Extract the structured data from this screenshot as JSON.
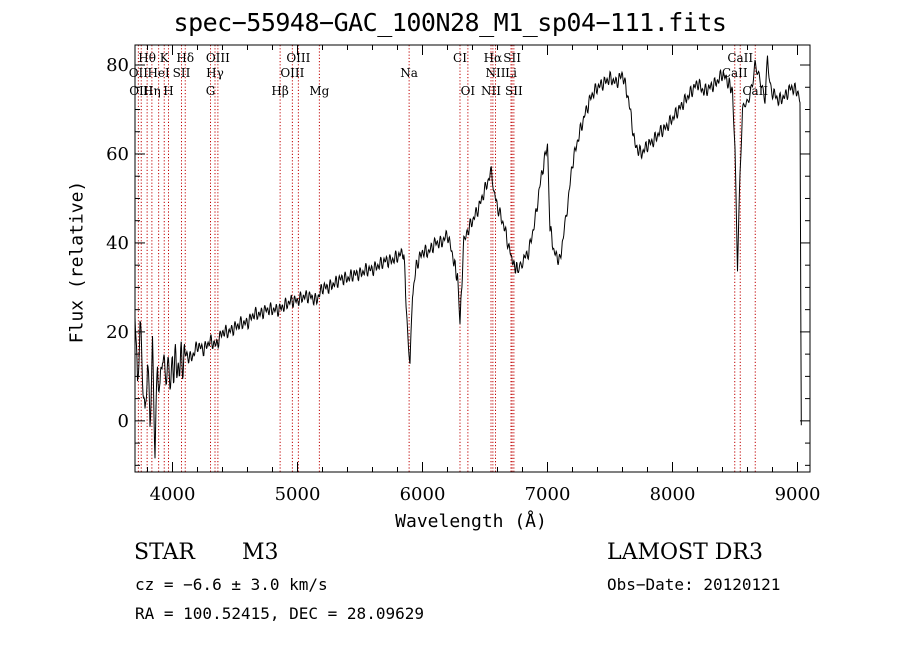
{
  "chart_data": {
    "type": "line",
    "title": "spec−55948−GAC_100N28_M1_sp04−111.fits",
    "xlabel": "Wavelength (Å)",
    "ylabel": "Flux (relative)",
    "xlim": [
      3700,
      9100
    ],
    "ylim": [
      -11.5,
      84.5
    ],
    "xticks": [
      4000,
      5000,
      6000,
      7000,
      8000,
      9000
    ],
    "yticks": [
      0,
      20,
      40,
      60,
      80
    ],
    "series": [
      {
        "name": "flux",
        "x": [
          3700,
          3720,
          3740,
          3760,
          3780,
          3800,
          3820,
          3840,
          3860,
          3880,
          3900,
          3920,
          3940,
          3960,
          3980,
          4000,
          4050,
          4100,
          4150,
          4200,
          4250,
          4300,
          4350,
          4400,
          4450,
          4500,
          4550,
          4600,
          4650,
          4700,
          4750,
          4800,
          4850,
          4900,
          4950,
          5000,
          5050,
          5100,
          5150,
          5200,
          5250,
          5300,
          5350,
          5400,
          5450,
          5500,
          5550,
          5600,
          5650,
          5700,
          5750,
          5800,
          5850,
          5880,
          5900,
          5920,
          5950,
          6000,
          6050,
          6100,
          6150,
          6200,
          6250,
          6280,
          6300,
          6330,
          6350,
          6400,
          6450,
          6500,
          6550,
          6570,
          6600,
          6650,
          6700,
          6730,
          6760,
          6800,
          6850,
          6900,
          6950,
          7000,
          7020,
          7050,
          7100,
          7130,
          7150,
          7200,
          7250,
          7300,
          7350,
          7400,
          7450,
          7500,
          7550,
          7600,
          7650,
          7700,
          7750,
          7800,
          7850,
          7900,
          7950,
          8000,
          8050,
          8100,
          8150,
          8200,
          8250,
          8300,
          8350,
          8400,
          8450,
          8480,
          8500,
          8520,
          8540,
          8560,
          8580,
          8600,
          8620,
          8640,
          8660,
          8680,
          8700,
          8720,
          8740,
          8760,
          8780,
          8800,
          8850,
          8900,
          8950,
          9000,
          9020,
          9030
        ],
        "y": [
          25,
          5,
          20,
          10,
          0,
          15,
          2,
          18,
          -5,
          12,
          5,
          14,
          8,
          11,
          10,
          13,
          12,
          15,
          14,
          17,
          16,
          18,
          17,
          20,
          20,
          21,
          22,
          22,
          24,
          24,
          25,
          25,
          25,
          26,
          27,
          27,
          28,
          28,
          27,
          30,
          30,
          31,
          32,
          32,
          33,
          33,
          34,
          34,
          35,
          36,
          36,
          37,
          38,
          20,
          12,
          28,
          35,
          38,
          38,
          40,
          40,
          42,
          36,
          32,
          22,
          40,
          42,
          45,
          48,
          52,
          56,
          52,
          48,
          44,
          38,
          35,
          34,
          36,
          38,
          45,
          55,
          62,
          44,
          38,
          36,
          42,
          46,
          58,
          64,
          69,
          73,
          75,
          76,
          77,
          76,
          78,
          72,
          62,
          60,
          62,
          63,
          65,
          66,
          68,
          70,
          72,
          74,
          76,
          74,
          75,
          76,
          78,
          76,
          74,
          60,
          34,
          55,
          70,
          72,
          72,
          74,
          76,
          80,
          78,
          76,
          74,
          72,
          82,
          76,
          74,
          72,
          73,
          75,
          74,
          73,
          -1
        ]
      }
    ],
    "lines": [
      {
        "label": "Hθ",
        "x": 3797,
        "row": 1
      },
      {
        "label": "K",
        "x": 3934,
        "row": 1
      },
      {
        "label": "Hδ",
        "x": 4102,
        "row": 1
      },
      {
        "label": "OIII",
        "x": 4363,
        "row": 1
      },
      {
        "label": "OIII",
        "x": 5007,
        "row": 1
      },
      {
        "label": "CI",
        "x": 6300,
        "row": 1
      },
      {
        "label": "Hα",
        "x": 6563,
        "row": 1
      },
      {
        "label": "SII",
        "x": 6717,
        "row": 1
      },
      {
        "label": "CaII",
        "x": 8542,
        "row": 1
      },
      {
        "label": "OII",
        "x": 3727,
        "row": 2
      },
      {
        "label": "HeI",
        "x": 3889,
        "row": 2
      },
      {
        "label": "SII",
        "x": 4072,
        "row": 2
      },
      {
        "label": "Hγ",
        "x": 4340,
        "row": 2
      },
      {
        "label": "OIII",
        "x": 4959,
        "row": 2
      },
      {
        "label": "Na",
        "x": 5893,
        "row": 2
      },
      {
        "label": "NII",
        "x": 6584,
        "row": 2
      },
      {
        "label": "Li",
        "x": 6708,
        "row": 2
      },
      {
        "label": "CaII",
        "x": 8498,
        "row": 2
      },
      {
        "label": "OIII",
        "x": 3750,
        "row": 3
      },
      {
        "label": "Hη",
        "x": 3835,
        "row": 3
      },
      {
        "label": "H",
        "x": 3968,
        "row": 3
      },
      {
        "label": "G",
        "x": 4304,
        "row": 3
      },
      {
        "label": "Hβ",
        "x": 4861,
        "row": 3
      },
      {
        "label": "Mg",
        "x": 5175,
        "row": 3
      },
      {
        "label": "OI",
        "x": 6363,
        "row": 3
      },
      {
        "label": "NII",
        "x": 6548,
        "row": 3
      },
      {
        "label": "SII",
        "x": 6731,
        "row": 3
      },
      {
        "label": "CaII",
        "x": 8662,
        "row": 3
      }
    ]
  },
  "info": {
    "class_label": "STAR",
    "subclass": "M3",
    "survey": "LAMOST DR3",
    "redshift": "cz = −6.6 ± 3.0 km/s",
    "obs_date": "Obs−Date: 20120121",
    "coords": "RA = 100.52415, DEC =  28.09629"
  }
}
